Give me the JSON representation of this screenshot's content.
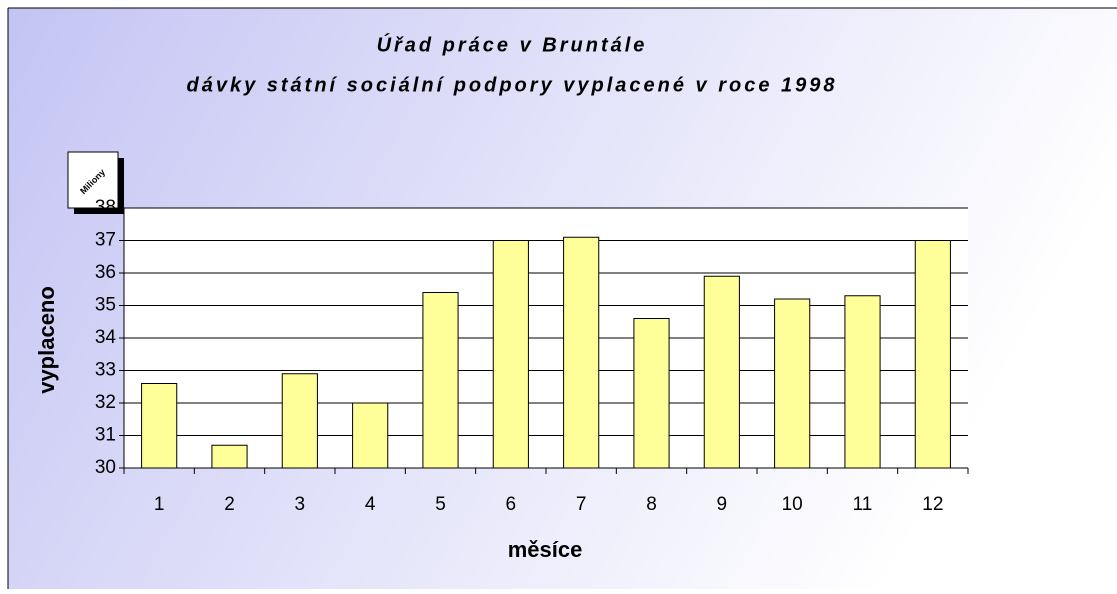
{
  "chart_data": {
    "type": "bar",
    "title": "Úřad práce v Bruntále",
    "subtitle": "dávky státní sociální podpory vyplacené v roce 1998",
    "y_unit_label": "Miliony",
    "x_label": "měsíce",
    "y_label": "vyplaceno",
    "categories": [
      "1",
      "2",
      "3",
      "4",
      "5",
      "6",
      "7",
      "8",
      "9",
      "10",
      "11",
      "12"
    ],
    "values": [
      32.6,
      30.7,
      32.9,
      32.0,
      35.4,
      37.0,
      37.1,
      34.6,
      35.9,
      35.2,
      35.3,
      37.0
    ],
    "color": "#ffff99",
    "ylim": [
      30,
      38
    ],
    "yticks": [
      30,
      31,
      32,
      33,
      34,
      35,
      36,
      37,
      38
    ],
    "grid": true
  }
}
